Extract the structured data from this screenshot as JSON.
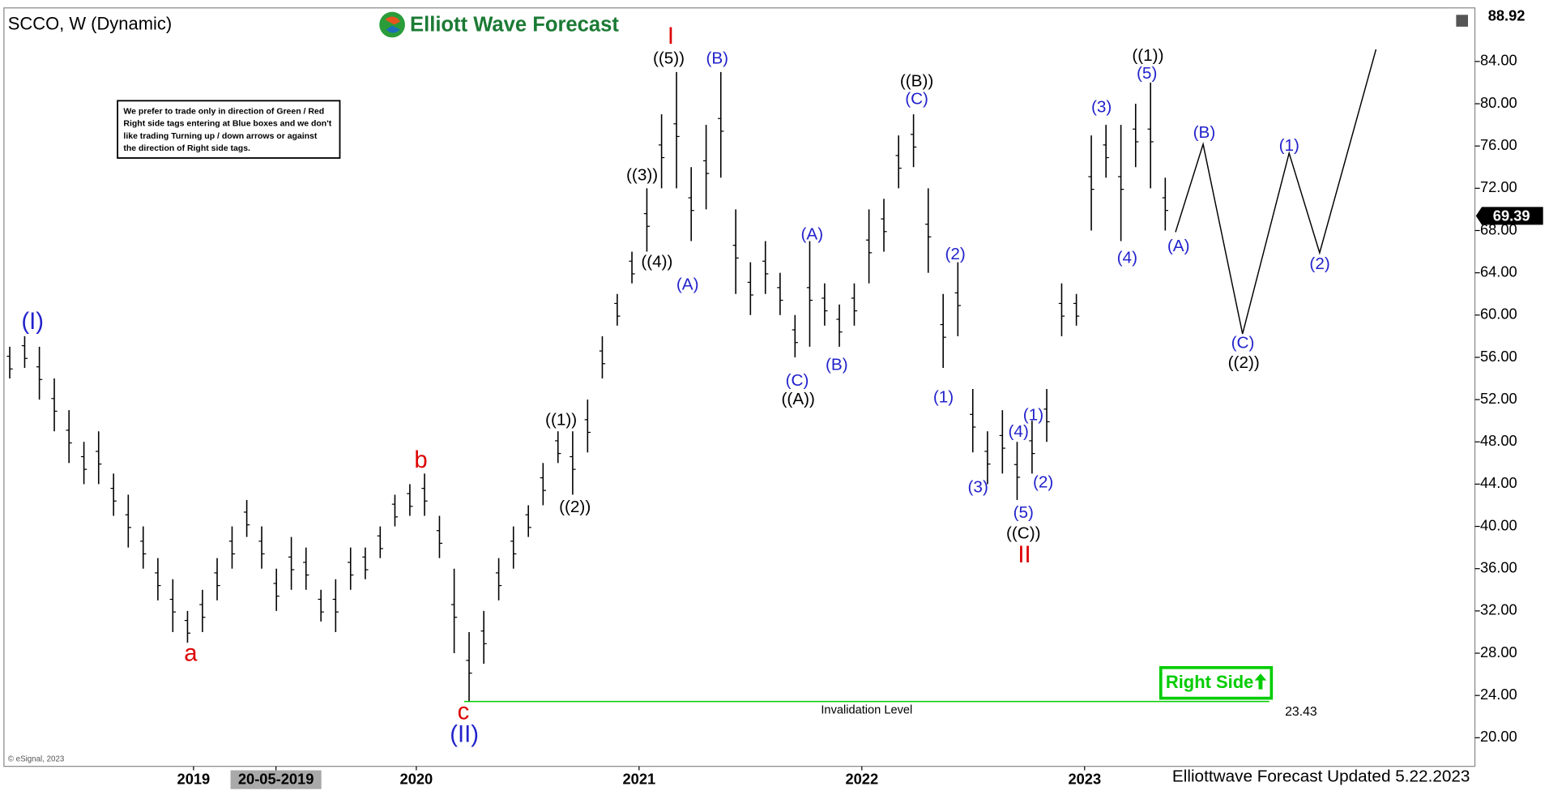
{
  "chart_data": {
    "type": "ohlc",
    "title": "SCCO, W (Dynamic)",
    "brand": "Elliott Wave Forecast",
    "note": [
      "We prefer to trade only in direction of Green / Red",
      "Right side tags entering at Blue boxes and we don't",
      "like trading Turning up / down arrows or against",
      "the direction of Right side tags."
    ],
    "copyright": "© eSignal, 2023",
    "footer": "Elliottwave Forecast Updated 5.22.2023",
    "right_side_tag": "Right Side",
    "bar_color": "#000000",
    "xlim": [
      2018.149,
      2024.752
    ],
    "ylim": [
      17.29,
      89.07
    ],
    "xticks": [
      2019,
      {
        "value": 2019.37,
        "label": "20-05-2019"
      },
      2020,
      2021,
      2022,
      2023
    ],
    "yticks": [
      {
        "value": 20,
        "label": "20.00"
      },
      {
        "value": 24,
        "label": "24.00"
      },
      {
        "value": 28,
        "label": "28.00"
      },
      {
        "value": 32,
        "label": "32.00"
      },
      {
        "value": 36,
        "label": "36.00"
      },
      {
        "value": 40,
        "label": "40.00"
      },
      {
        "value": 44,
        "label": "44.00"
      },
      {
        "value": 48,
        "label": "48.00"
      },
      {
        "value": 52,
        "label": "52.00"
      },
      {
        "value": 56,
        "label": "56.00"
      },
      {
        "value": 60,
        "label": "60.00"
      },
      {
        "value": 64,
        "label": "64.00"
      },
      {
        "value": 68,
        "label": "68.00"
      },
      {
        "value": 72,
        "label": "72.00"
      },
      {
        "value": 76,
        "label": "76.00"
      },
      {
        "value": 80,
        "label": "80.00"
      },
      {
        "value": 84,
        "label": "84.00"
      }
    ],
    "top_price": 88.92,
    "last_price": 69.39,
    "x": [
      2018.175,
      2018.242,
      2018.308,
      2018.375,
      2018.441,
      2018.508,
      2018.574,
      2018.641,
      2018.707,
      2018.774,
      2018.84,
      2018.907,
      2018.973,
      2019.04,
      2019.106,
      2019.173,
      2019.239,
      2019.306,
      2019.372,
      2019.439,
      2019.505,
      2019.572,
      2019.638,
      2019.705,
      2019.771,
      2019.838,
      2019.904,
      2019.971,
      2020.037,
      2020.104,
      2020.17,
      2020.237,
      2020.303,
      2020.37,
      2020.436,
      2020.503,
      2020.569,
      2020.636,
      2020.702,
      2020.769,
      2020.835,
      2020.902,
      2020.968,
      2021.035,
      2021.101,
      2021.168,
      2021.234,
      2021.301,
      2021.367,
      2021.434,
      2021.5,
      2021.567,
      2021.633,
      2021.7,
      2021.766,
      2021.833,
      2021.899,
      2021.966,
      2022.032,
      2022.099,
      2022.165,
      2022.232,
      2022.298,
      2022.365,
      2022.431,
      2022.498,
      2022.564,
      2022.631,
      2022.697,
      2022.764,
      2022.83,
      2022.897,
      2022.963,
      2023.03,
      2023.096,
      2023.163,
      2023.229,
      2023.296,
      2023.362
    ],
    "high": [
      57,
      58,
      57,
      54,
      51,
      48,
      49,
      45,
      43,
      40,
      37,
      35,
      32,
      34,
      37,
      40,
      42.5,
      40,
      36,
      39,
      38,
      34,
      35,
      38,
      38,
      40,
      43,
      44,
      45,
      41,
      36,
      30,
      32,
      37,
      40,
      42,
      46,
      49,
      49,
      52,
      58,
      62,
      66,
      72,
      79,
      83,
      74,
      78,
      83,
      70,
      65,
      67,
      64,
      60,
      67,
      63,
      61,
      63,
      70,
      71,
      77,
      79,
      72,
      62,
      65,
      53,
      49,
      51,
      48,
      50,
      53,
      63,
      62,
      77,
      78,
      78,
      80,
      82,
      73
    ],
    "low": [
      54,
      55,
      52,
      49,
      46,
      44,
      44,
      41,
      38,
      36,
      33,
      30,
      29,
      30,
      33,
      36,
      39,
      36,
      32,
      34,
      34,
      31,
      30,
      34,
      35,
      37,
      40,
      41,
      41,
      37,
      28,
      23.43,
      27,
      33,
      36,
      39,
      42,
      46,
      43,
      47,
      54,
      59,
      63,
      66,
      72,
      72,
      67,
      70,
      73,
      62,
      60,
      62,
      60,
      56,
      57,
      59,
      57,
      59,
      63,
      66,
      72,
      74,
      64,
      55,
      58,
      47,
      44,
      45,
      42.5,
      45,
      48,
      58,
      59,
      68,
      73,
      67,
      74,
      72,
      68
    ],
    "projection": {
      "color": "#000000",
      "x": [
        2023.408,
        2023.532,
        2023.709,
        2023.918,
        2024.055,
        2024.308
      ],
      "values": [
        67.85,
        76.17,
        58.22,
        75.33,
        65.89,
        85.14
      ]
    },
    "invalidation": {
      "label": "Invalidation Level",
      "value": 23.43,
      "value_label": "23.43",
      "color": "#00cc00",
      "x": [
        2020.215,
        2023.829
      ]
    },
    "annotations": [
      {
        "text": "(I)",
        "color": "#2222cc"
      },
      {
        "text": "a",
        "color": "#dd0000"
      },
      {
        "text": "b",
        "color": "#dd0000"
      },
      {
        "text": "c",
        "color": "#dd0000"
      },
      {
        "text": "(II)",
        "color": "#2222cc"
      },
      {
        "text": "((1))",
        "color": "#000000"
      },
      {
        "text": "((2))",
        "color": "#000000"
      },
      {
        "text": "((3))",
        "color": "#000000"
      },
      {
        "text": "((4))",
        "color": "#000000"
      },
      {
        "text": "((5))",
        "color": "#000000"
      },
      {
        "text": "I",
        "color": "#dd0000"
      },
      {
        "text": "(A)",
        "color": "#2222cc"
      },
      {
        "text": "(B)",
        "color": "#2222cc"
      },
      {
        "text": "(A)",
        "color": "#2222cc"
      },
      {
        "text": "(C)",
        "color": "#2222cc"
      },
      {
        "text": "((A))",
        "color": "#000000"
      },
      {
        "text": "(B)",
        "color": "#2222cc"
      },
      {
        "text": "((B))",
        "color": "#000000"
      },
      {
        "text": "(C)",
        "color": "#2222cc"
      },
      {
        "text": "(2)",
        "color": "#2222cc"
      },
      {
        "text": "(1)",
        "color": "#2222cc"
      },
      {
        "text": "(3)",
        "color": "#2222cc"
      },
      {
        "text": "(4)",
        "color": "#2222cc"
      },
      {
        "text": "(1)",
        "color": "#2222cc"
      },
      {
        "text": "(2)",
        "color": "#2222cc"
      },
      {
        "text": "(5)",
        "color": "#2222cc"
      },
      {
        "text": "((C))",
        "color": "#000000"
      },
      {
        "text": "II",
        "color": "#dd0000"
      },
      {
        "text": "(3)",
        "color": "#2222cc"
      },
      {
        "text": "(4)",
        "color": "#2222cc"
      },
      {
        "text": "((1))",
        "color": "#000000"
      },
      {
        "text": "(5)",
        "color": "#2222cc"
      },
      {
        "text": "(A)",
        "color": "#2222cc"
      },
      {
        "text": "(B)",
        "color": "#2222cc"
      },
      {
        "text": "(C)",
        "color": "#2222cc"
      },
      {
        "text": "((2))",
        "color": "#000000"
      },
      {
        "text": "(1)",
        "color": "#2222cc"
      },
      {
        "text": "(2)",
        "color": "#2222cc"
      }
    ]
  }
}
